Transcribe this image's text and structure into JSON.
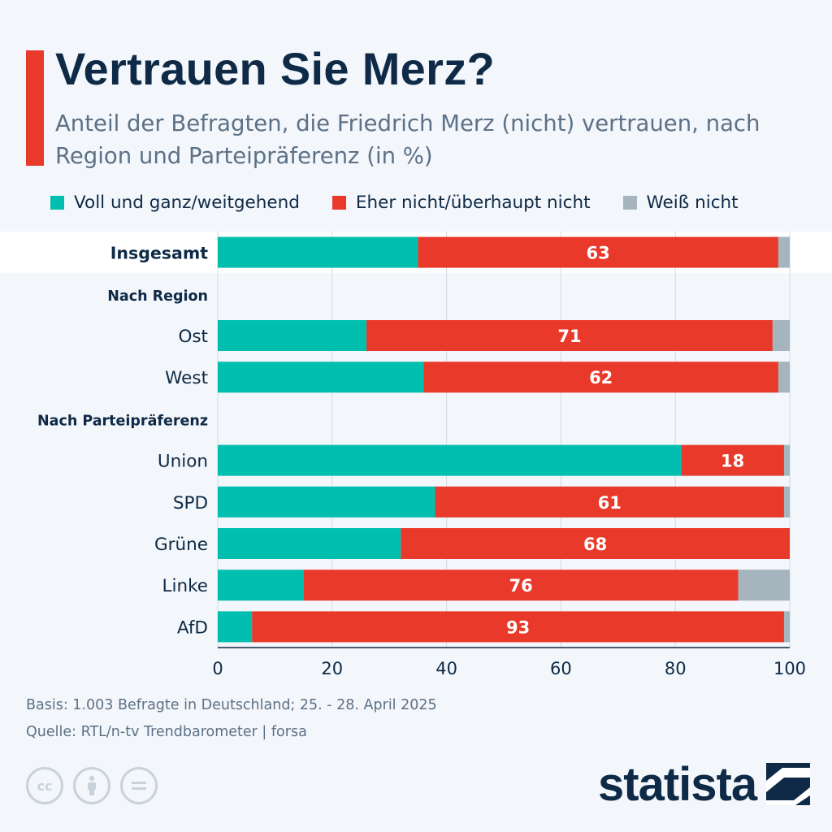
{
  "header": {
    "title": "Vertrauen Sie Merz?",
    "subtitle": "Anteil der Befragten, die Friedrich Merz (nicht) vertrauen, nach Region und Parteipräferenz (in %)"
  },
  "colors": {
    "trust": "#00bfae",
    "distrust": "#e8392a",
    "dontknow": "#a5b4bd",
    "accent": "#e8392a",
    "text": "#0e2a47",
    "grid": "#d2dae2",
    "highlight": "#ffffff"
  },
  "chart_data": {
    "type": "bar",
    "orientation": "horizontal",
    "stacked": true,
    "title": "Vertrauen Sie Merz?",
    "xlim": [
      0,
      100
    ],
    "xticks": [
      0,
      20,
      40,
      60,
      80,
      100
    ],
    "grid": true,
    "legend": [
      {
        "key": "trust",
        "label": "Voll und ganz/weitgehend"
      },
      {
        "key": "distrust",
        "label": "Eher nicht/überhaupt nicht"
      },
      {
        "key": "dontknow",
        "label": "Weiß nicht"
      }
    ],
    "rows": [
      {
        "label": "Insgesamt",
        "kind": "total",
        "trust": 35,
        "distrust": 63,
        "dontknow": 2,
        "label_value": "63"
      },
      {
        "label": "Nach Region",
        "kind": "section"
      },
      {
        "label": "Ost",
        "kind": "bar",
        "trust": 26,
        "distrust": 71,
        "dontknow": 3,
        "label_value": "71"
      },
      {
        "label": "West",
        "kind": "bar",
        "trust": 36,
        "distrust": 62,
        "dontknow": 2,
        "label_value": "62"
      },
      {
        "label": "Nach Parteipräferenz",
        "kind": "section"
      },
      {
        "label": "Union",
        "kind": "bar",
        "trust": 81,
        "distrust": 18,
        "dontknow": 1,
        "label_value": "18"
      },
      {
        "label": "SPD",
        "kind": "bar",
        "trust": 38,
        "distrust": 61,
        "dontknow": 1,
        "label_value": "61"
      },
      {
        "label": "Grüne",
        "kind": "bar",
        "trust": 32,
        "distrust": 68,
        "dontknow": 0,
        "label_value": "68"
      },
      {
        "label": "Linke",
        "kind": "bar",
        "trust": 15,
        "distrust": 76,
        "dontknow": 9,
        "label_value": "76"
      },
      {
        "label": "AfD",
        "kind": "bar",
        "trust": 6,
        "distrust": 93,
        "dontknow": 1,
        "label_value": "93"
      }
    ]
  },
  "footer": {
    "basis": "Basis: 1.003 Befragte in Deutschland; 25. - 28. April 2025",
    "source": "Quelle: RTL/n-tv Trendbarometer | forsa"
  },
  "license_icons": [
    "cc-icon",
    "by-icon",
    "nd-icon"
  ],
  "brand": {
    "name": "statista"
  }
}
